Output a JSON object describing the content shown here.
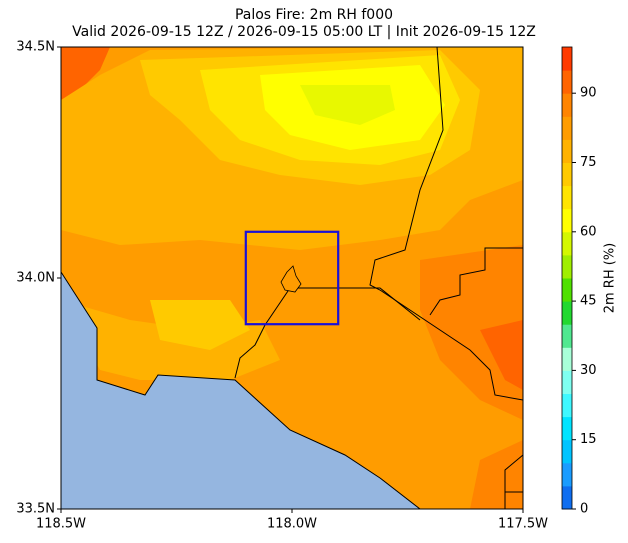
{
  "map": {
    "title": "Palos Fire: 2m RH f000",
    "subtitle": "Valid 2026-09-15 12Z / 2026-09-15 05:00 LT | Init 2026-09-15 12Z",
    "xlim": [
      -118.5,
      -117.5
    ],
    "ylim": [
      33.5,
      34.5
    ],
    "xticks": [
      {
        "value": -118.5,
        "label": "118.5W"
      },
      {
        "value": -118.0,
        "label": "118.0W"
      },
      {
        "value": -117.5,
        "label": "117.5W"
      }
    ],
    "yticks": [
      {
        "value": 33.5,
        "label": "33.5N"
      },
      {
        "value": 34.0,
        "label": "34.0N"
      },
      {
        "value": 34.5,
        "label": "34.5N"
      }
    ],
    "box": {
      "lon": [
        -118.1,
        -117.9
      ],
      "lat": [
        33.9,
        34.1
      ],
      "color": "#1a10d8"
    },
    "colorbar": {
      "label": "2m RH (%)",
      "lim": [
        0,
        100
      ],
      "ticks": [
        0,
        15,
        30,
        45,
        60,
        75,
        90
      ],
      "colors": [
        "#0f6ef0",
        "#1a9cff",
        "#00c4ff",
        "#00e4ff",
        "#3ff8ff",
        "#7ffff0",
        "#a8ffd8",
        "#50e890",
        "#22d830",
        "#50e000",
        "#a0ee00",
        "#d4f800",
        "#ffff00",
        "#ffe400",
        "#ffca00",
        "#ffb200",
        "#ff9c00",
        "#ff8400",
        "#ff6400",
        "#ff3a00"
      ]
    }
  }
}
